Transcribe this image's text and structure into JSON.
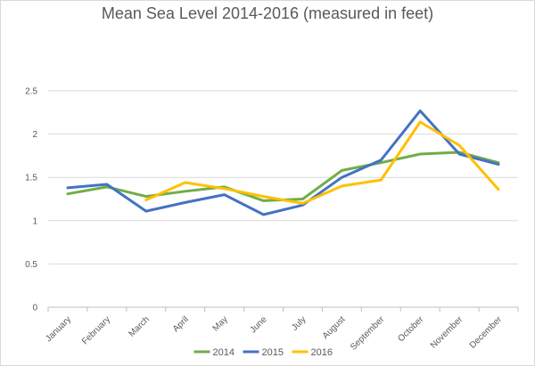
{
  "chart_data": {
    "type": "line",
    "title": "Mean Sea Level 2014-2016 (measured in feet)",
    "xlabel": "",
    "ylabel": "",
    "categories": [
      "January",
      "February",
      "March",
      "April",
      "May",
      "June",
      "July",
      "August",
      "September",
      "October",
      "November",
      "December"
    ],
    "yticks": [
      "0",
      "0.5",
      "1",
      "1.5",
      "2",
      "2.5"
    ],
    "ylim": [
      0,
      2.5
    ],
    "grid": true,
    "legend_position": "bottom",
    "series": [
      {
        "name": "2014",
        "color": "#70ad47",
        "values": [
          1.31,
          1.39,
          1.28,
          1.34,
          1.39,
          1.23,
          1.25,
          1.58,
          1.67,
          1.77,
          1.79,
          1.67
        ]
      },
      {
        "name": "2015",
        "color": "#4472c4",
        "values": [
          1.38,
          1.42,
          1.11,
          1.21,
          1.3,
          1.07,
          1.18,
          1.5,
          1.7,
          2.27,
          1.77,
          1.65
        ]
      },
      {
        "name": "2016",
        "color": "#ffc000",
        "values": [
          null,
          null,
          1.24,
          1.44,
          1.37,
          1.28,
          1.2,
          1.4,
          1.47,
          2.14,
          1.87,
          1.36
        ]
      }
    ]
  }
}
